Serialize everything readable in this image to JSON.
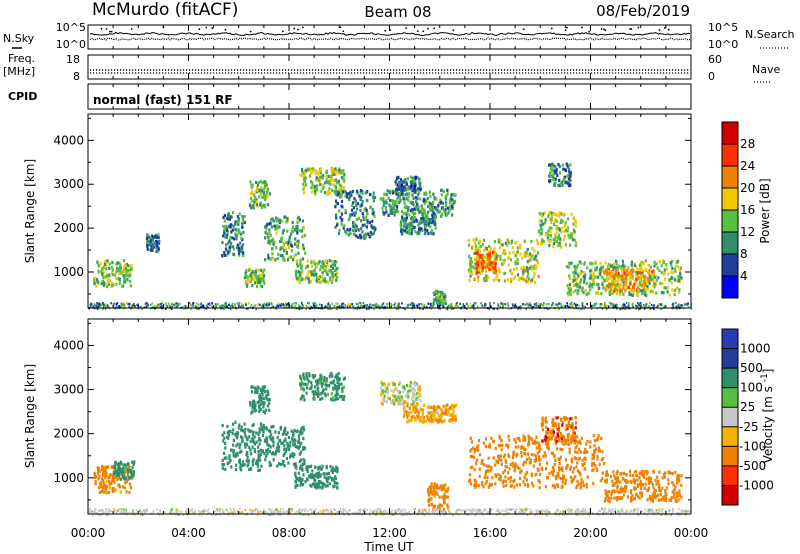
{
  "header": {
    "station": "McMurdo (fitACF)",
    "beam": "Beam 08",
    "date": "08/Feb/2019"
  },
  "panels": {
    "nsky": {
      "label_left": "N.Sky",
      "tick_hi": "10^5",
      "tick_lo": "10^0",
      "label_right": "N.Search",
      "right_tick_hi": "10^5",
      "right_tick_lo": "10^0"
    },
    "freq": {
      "label_line1": "Freq.",
      "label_line2": "[MHz]",
      "tick_hi": "18",
      "tick_lo": "8",
      "label_right": "Nave",
      "right_tick_hi": "60",
      "right_tick_lo": "0"
    },
    "cpid": {
      "label": "CPID",
      "value": "normal (fast) 151 RF"
    }
  },
  "colors": {
    "power_scale": [
      "#0000ff",
      "#1f3f9a",
      "#2f8f6a",
      "#58c040",
      "#f0c800",
      "#f08000",
      "#ff3000",
      "#d00000"
    ],
    "velocity_scale": [
      "#d00000",
      "#ff3000",
      "#f08000",
      "#f5b000",
      "#c8c8c8",
      "#58c040",
      "#2f8f6a",
      "#1f3f9a",
      "#2a3ab0"
    ]
  },
  "chart_data": [
    {
      "type": "heatmap",
      "title": "Power",
      "ylabel": "Slant Range [km]",
      "xlabel": "",
      "ylim": [
        180,
        4600
      ],
      "yticks": [
        1000,
        2000,
        3000,
        4000
      ],
      "colorbar": {
        "label": "Power [dB]",
        "ticks": [
          "4",
          "8",
          "12",
          "16",
          "20",
          "24",
          "28"
        ],
        "range": [
          0,
          32
        ]
      },
      "regions": [
        {
          "t": [
            0.2,
            1.7
          ],
          "r": [
            700,
            1300
          ],
          "v": 14
        },
        {
          "t": [
            2.3,
            2.8
          ],
          "r": [
            1500,
            1900
          ],
          "v": 8
        },
        {
          "t": [
            5.3,
            6.2
          ],
          "r": [
            1400,
            2400
          ],
          "v": 9
        },
        {
          "t": [
            6.2,
            7.0
          ],
          "r": [
            700,
            1100
          ],
          "v": 14
        },
        {
          "t": [
            7.0,
            8.6
          ],
          "r": [
            1300,
            2300
          ],
          "v": 12
        },
        {
          "t": [
            8.2,
            9.9
          ],
          "r": [
            800,
            1300
          ],
          "v": 14
        },
        {
          "t": [
            6.4,
            7.2
          ],
          "r": [
            2500,
            3100
          ],
          "v": 13
        },
        {
          "t": [
            8.4,
            10.2
          ],
          "r": [
            2800,
            3400
          ],
          "v": 15
        },
        {
          "t": [
            9.8,
            11.4
          ],
          "r": [
            1800,
            2900
          ],
          "v": 9
        },
        {
          "t": [
            11.6,
            14.6
          ],
          "r": [
            2300,
            2900
          ],
          "v": 11
        },
        {
          "t": [
            12.2,
            13.2
          ],
          "r": [
            2900,
            3200
          ],
          "v": 8
        },
        {
          "t": [
            12.4,
            13.8
          ],
          "r": [
            1900,
            2300
          ],
          "v": 10
        },
        {
          "t": [
            13.7,
            14.2
          ],
          "r": [
            300,
            600
          ],
          "v": 12
        },
        {
          "t": [
            15.1,
            17.9
          ],
          "r": [
            800,
            1800
          ],
          "v": 16
        },
        {
          "t": [
            15.4,
            16.2
          ],
          "r": [
            1000,
            1500
          ],
          "v": 23
        },
        {
          "t": [
            17.9,
            19.4
          ],
          "r": [
            1600,
            2400
          ],
          "v": 15
        },
        {
          "t": [
            18.3,
            19.2
          ],
          "r": [
            3000,
            3500
          ],
          "v": 10
        },
        {
          "t": [
            19.0,
            23.6
          ],
          "r": [
            500,
            1300
          ],
          "v": 14
        },
        {
          "t": [
            20.5,
            22.5
          ],
          "r": [
            600,
            1100
          ],
          "v": 20
        }
      ],
      "ground_band": {
        "r": [
          180,
          320
        ],
        "v": 10
      }
    },
    {
      "type": "heatmap",
      "title": "Velocity",
      "ylabel": "Slant Range [km]",
      "xlabel": "Time UT",
      "ylim": [
        180,
        4600
      ],
      "yticks": [
        1000,
        2000,
        3000,
        4000
      ],
      "xticks": [
        "00:00",
        "04:00",
        "08:00",
        "12:00",
        "16:00",
        "20:00",
        "00:00"
      ],
      "xlim_hours": [
        0,
        24
      ],
      "colorbar": {
        "label": "Velocity [m s^-1]",
        "ticks": [
          "1000",
          "500",
          "100",
          "25",
          "-25",
          "-100",
          "-500",
          "-1000"
        ]
      },
      "regions": [
        {
          "t": [
            0.2,
            1.7
          ],
          "r": [
            700,
            1300
          ],
          "v": -150
        },
        {
          "t": [
            1.0,
            1.8
          ],
          "r": [
            1000,
            1400
          ],
          "v": 150
        },
        {
          "t": [
            5.3,
            7.0
          ],
          "r": [
            1200,
            2300
          ],
          "v": 300
        },
        {
          "t": [
            7.0,
            8.6
          ],
          "r": [
            1300,
            2200
          ],
          "v": 250
        },
        {
          "t": [
            8.2,
            9.9
          ],
          "r": [
            800,
            1300
          ],
          "v": 300
        },
        {
          "t": [
            6.4,
            7.2
          ],
          "r": [
            2500,
            3100
          ],
          "v": 200
        },
        {
          "t": [
            8.4,
            10.2
          ],
          "r": [
            2800,
            3400
          ],
          "v": 150
        },
        {
          "t": [
            11.6,
            13.2
          ],
          "r": [
            2700,
            3200
          ],
          "v": 0
        },
        {
          "t": [
            12.5,
            14.6
          ],
          "r": [
            2300,
            2700
          ],
          "v": -80
        },
        {
          "t": [
            13.5,
            14.3
          ],
          "r": [
            300,
            900
          ],
          "v": -150
        },
        {
          "t": [
            15.1,
            20.5
          ],
          "r": [
            800,
            2000
          ],
          "v": -300
        },
        {
          "t": [
            18.0,
            19.4
          ],
          "r": [
            1800,
            2400
          ],
          "v": -400
        },
        {
          "t": [
            20.5,
            23.6
          ],
          "r": [
            500,
            1200
          ],
          "v": -250
        }
      ],
      "ground_band": {
        "r": [
          180,
          320
        ],
        "v": 0
      }
    }
  ]
}
